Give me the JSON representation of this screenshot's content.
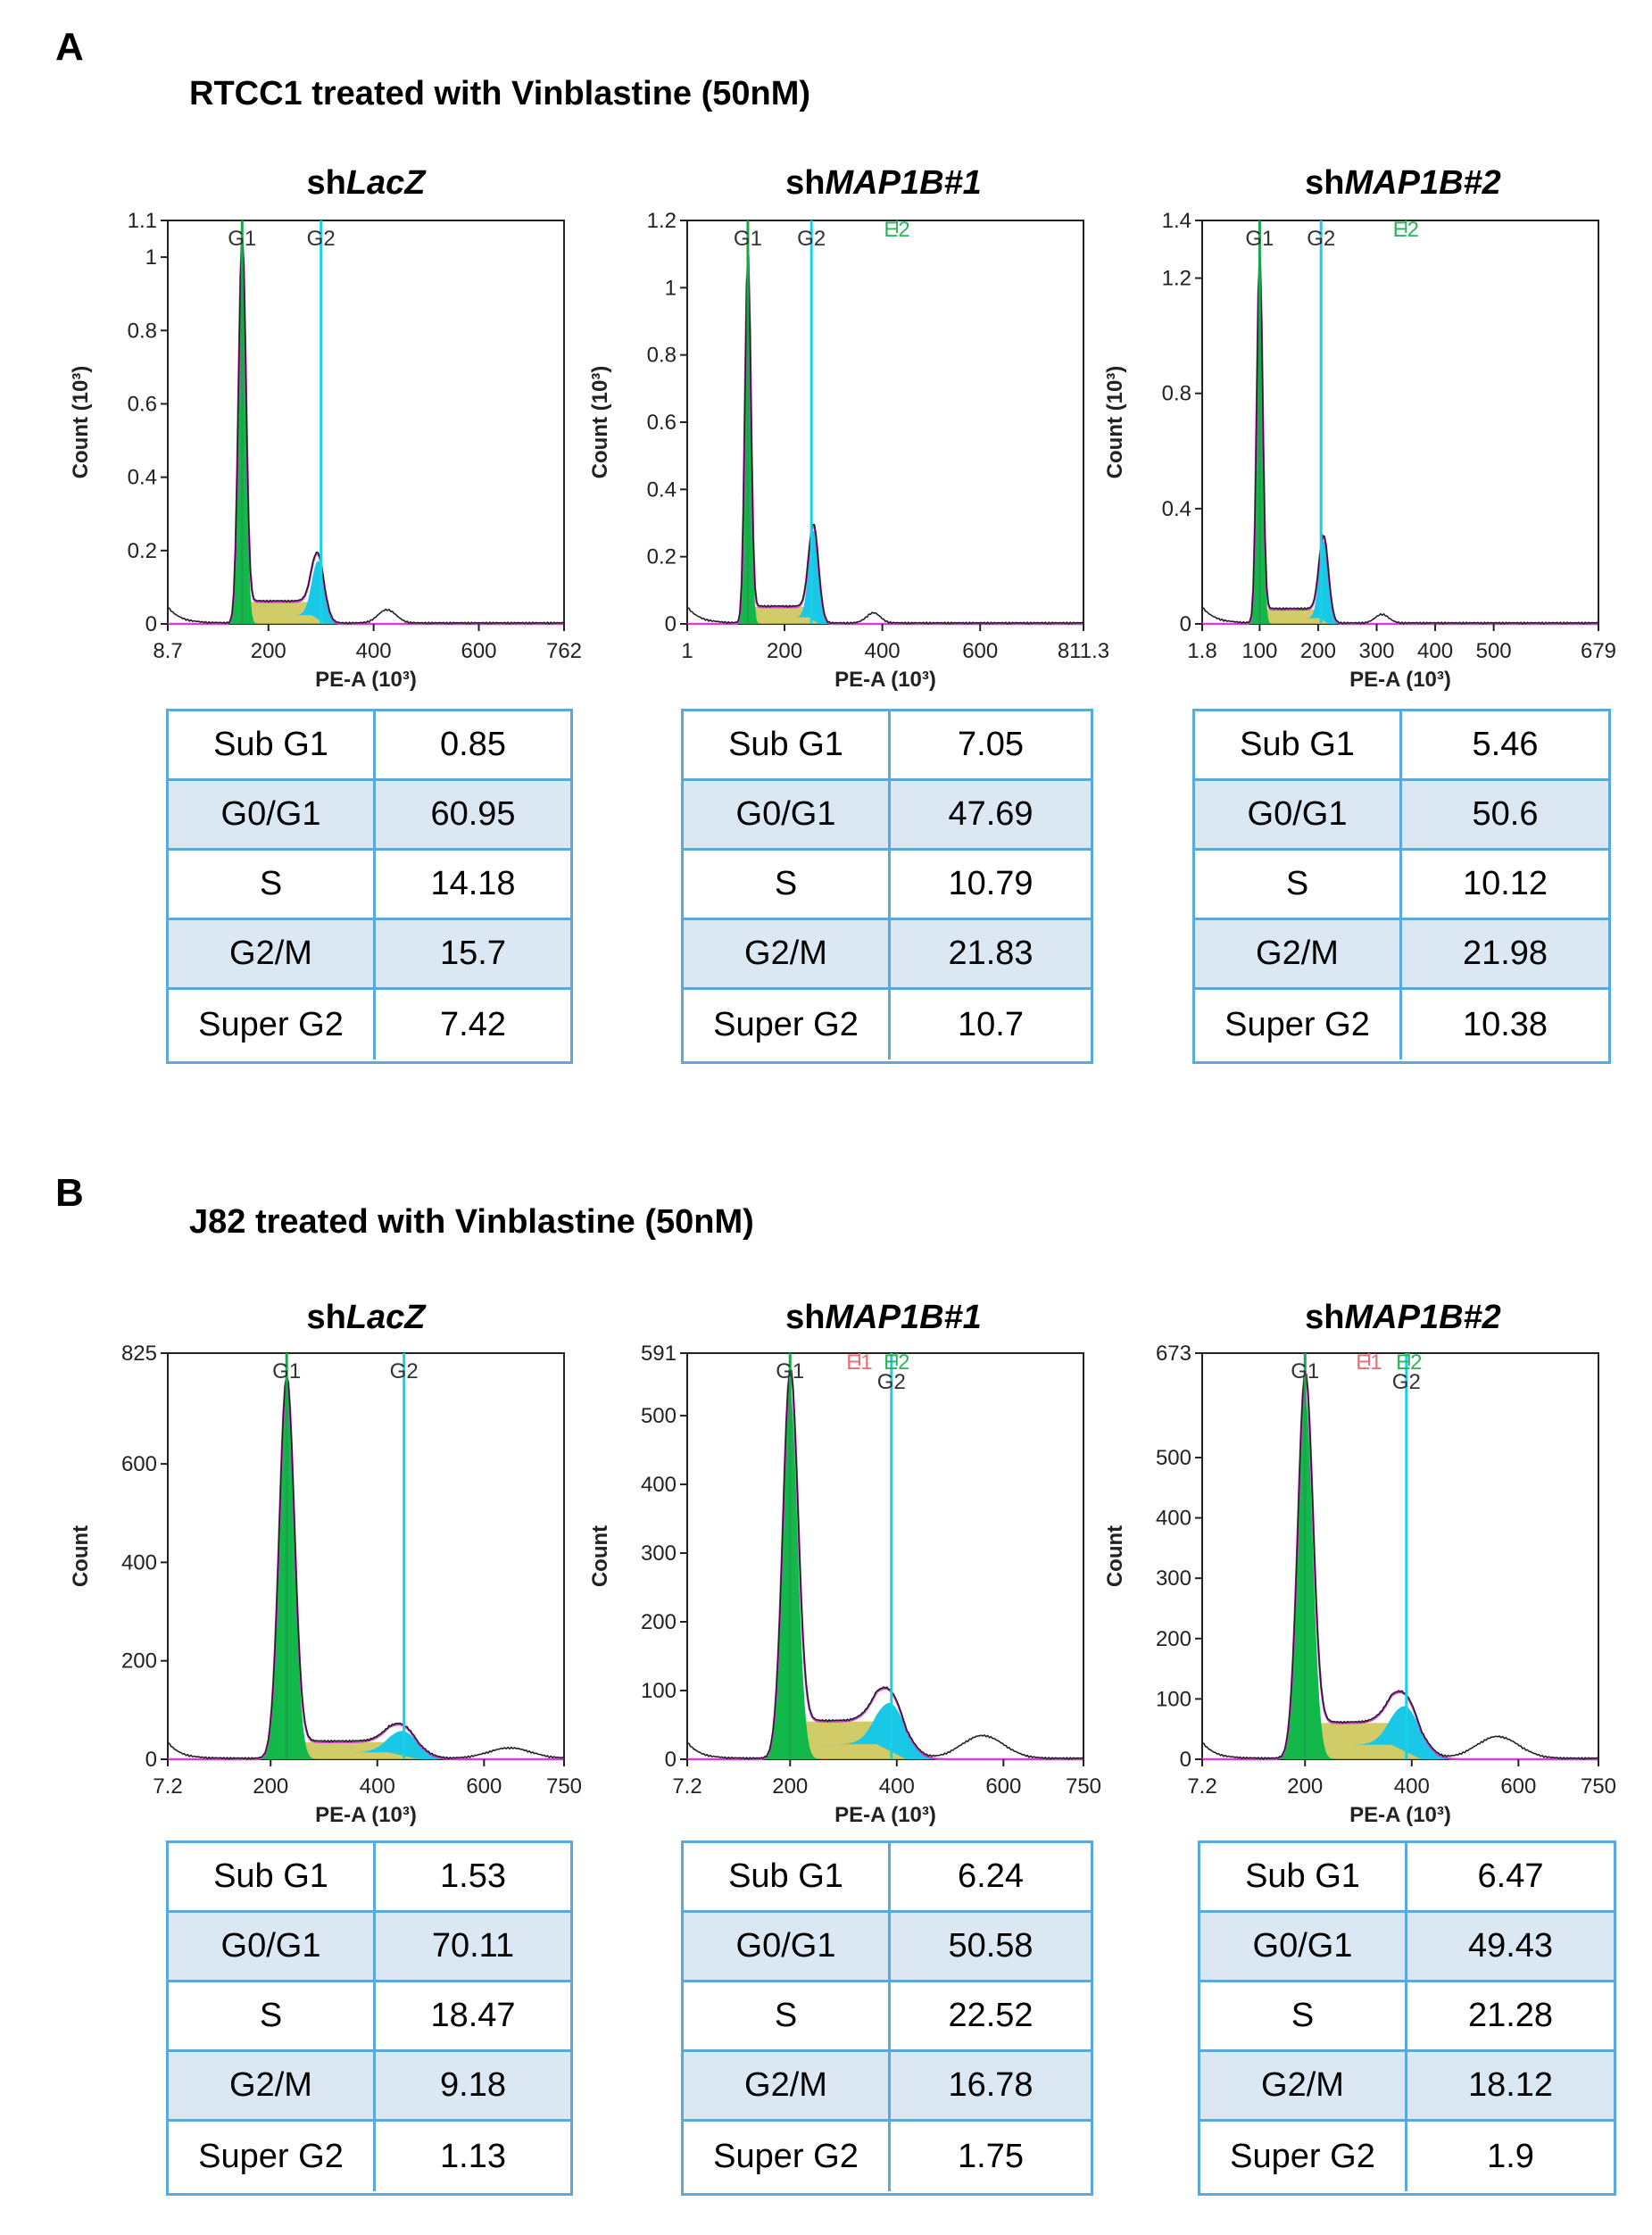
{
  "colors": {
    "g1_fill": "#12b94a",
    "s_fill": "#c9c24e",
    "g2_fill": "#18c8e6",
    "fit_line": "#d63fd6",
    "raw_line": "#222222",
    "g1_marker": "#1aa74a",
    "g2_marker": "#1ad0e6",
    "e1_label": "#ef6b73",
    "e2_label": "#2eb35c",
    "table_border": "#5ba9da",
    "table_shade": "#dbe8f4"
  },
  "panels": [
    {
      "label": "A",
      "title": "RTCC1 treated with Vinblastine (50nM)",
      "charts": [
        {
          "title_prefix": "sh",
          "title_gene": "LacZ",
          "chart_data": {
            "type": "histogram",
            "xlabel": "PE-A (10³)",
            "ylabel": "Count (10³)",
            "xlim": [
              8.7,
              762
            ],
            "ylim": [
              0,
              1.1
            ],
            "xticks": [
              8.7,
              200,
              400,
              600,
              762
            ],
            "xtick_labels": [
              "8.7",
              "200",
              "400",
              "600",
              "762"
            ],
            "yticks": [
              0,
              0.2,
              0.4,
              0.6,
              0.8,
              1,
              1.1
            ],
            "ytick_labels": [
              "0",
              "0.2",
              "0.4",
              "0.6",
              "0.8",
              "1",
              "1.1"
            ],
            "g1_peak": {
              "x": 150,
              "y": 1.03,
              "sd": 7
            },
            "g2_peak": {
              "x": 295,
              "y": 0.16,
              "sd": 12
            },
            "s_level": 0.06,
            "g1_marker": {
              "x": 150,
              "label": "G1"
            },
            "g2_marker": {
              "x": 300,
              "label": "G2"
            }
          },
          "table": [
            {
              "phase": "Sub G1",
              "value": "0.85"
            },
            {
              "phase": "G0/G1",
              "value": "60.95"
            },
            {
              "phase": "S",
              "value": "14.18"
            },
            {
              "phase": "G2/M",
              "value": "15.7"
            },
            {
              "phase": "Super G2",
              "value": "7.42"
            }
          ]
        },
        {
          "title_prefix": "sh",
          "title_gene": "MAP1B#1",
          "chart_data": {
            "type": "histogram",
            "xlabel": "PE-A (10³)",
            "ylabel": "Count (10³)",
            "xlim": [
              1,
              811.3
            ],
            "ylim": [
              0,
              1.2
            ],
            "xticks": [
              1,
              200,
              400,
              600,
              811.3
            ],
            "xtick_labels": [
              "1",
              "200",
              "400",
              "600",
              "811.3"
            ],
            "yticks": [
              0,
              0.2,
              0.4,
              0.6,
              0.8,
              1,
              1.2
            ],
            "ytick_labels": [
              "0",
              "0.2",
              "0.4",
              "0.6",
              "0.8",
              "1",
              "1.2"
            ],
            "g1_peak": {
              "x": 125,
              "y": 1.08,
              "sd": 6
            },
            "g2_peak": {
              "x": 260,
              "y": 0.27,
              "sd": 10
            },
            "s_level": 0.05,
            "g1_marker": {
              "x": 125,
              "label": "G1"
            },
            "g2_marker": {
              "x": 255,
              "label": "G2"
            },
            "extra_markers": [
              {
                "x": 430,
                "label": "E2",
                "role": "e2"
              }
            ]
          },
          "table": [
            {
              "phase": "Sub G1",
              "value": "7.05"
            },
            {
              "phase": "G0/G1",
              "value": "47.69"
            },
            {
              "phase": "S",
              "value": "10.79"
            },
            {
              "phase": "G2/M",
              "value": "21.83"
            },
            {
              "phase": "Super G2",
              "value": "10.7"
            }
          ]
        },
        {
          "title_prefix": "sh",
          "title_gene": "MAP1B#2",
          "chart_data": {
            "type": "histogram",
            "xlabel": "PE-A (10³)",
            "ylabel": "Count (10³)",
            "xlim": [
              1.8,
              679
            ],
            "ylim": [
              0,
              1.4
            ],
            "xticks": [
              1.8,
              100,
              200,
              300,
              400,
              500,
              679
            ],
            "xtick_labels": [
              "1.8",
              "100",
              "200",
              "300",
              "400",
              "500",
              "679"
            ],
            "yticks": [
              0,
              0.4,
              0.8,
              1.2,
              1.4
            ],
            "ytick_labels": [
              "0",
              "0.4",
              "0.8",
              "1.2",
              "1.4"
            ],
            "g1_peak": {
              "x": 100,
              "y": 1.26,
              "sd": 5
            },
            "g2_peak": {
              "x": 210,
              "y": 0.28,
              "sd": 8
            },
            "s_level": 0.05,
            "g1_marker": {
              "x": 100,
              "label": "G1"
            },
            "g2_marker": {
              "x": 205,
              "label": "G2"
            },
            "extra_markers": [
              {
                "x": 350,
                "label": "E2",
                "role": "e2"
              }
            ]
          },
          "table": [
            {
              "phase": "Sub G1",
              "value": "5.46"
            },
            {
              "phase": "G0/G1",
              "value": "50.6"
            },
            {
              "phase": "S",
              "value": "10.12"
            },
            {
              "phase": "G2/M",
              "value": "21.98"
            },
            {
              "phase": "Super G2",
              "value": "10.38"
            }
          ]
        }
      ]
    },
    {
      "label": "B",
      "title": "J82 treated with Vinblastine (50nM)",
      "charts": [
        {
          "title_prefix": "sh",
          "title_gene": "LacZ",
          "chart_data": {
            "type": "histogram",
            "xlabel": "PE-A (10³)",
            "ylabel": "Count",
            "xlim": [
              7.2,
              750
            ],
            "ylim": [
              0,
              825
            ],
            "xticks": [
              7.2,
              200,
              400,
              600,
              750
            ],
            "xtick_labels": [
              "7.2",
              "200",
              "400",
              "600",
              "750"
            ],
            "yticks": [
              0,
              200,
              400,
              600,
              825
            ],
            "ytick_labels": [
              "0",
              "200",
              "400",
              "600",
              "825"
            ],
            "g1_peak": {
              "x": 230,
              "y": 760,
              "sd": 14
            },
            "g2_peak": {
              "x": 450,
              "y": 50,
              "sd": 28
            },
            "s_level": 35,
            "g1_marker": {
              "x": 230,
              "label": "G1"
            },
            "g2_marker": {
              "x": 450,
              "label": "G2"
            }
          },
          "table": [
            {
              "phase": "Sub G1",
              "value": "1.53"
            },
            {
              "phase": "G0/G1",
              "value": "70.11"
            },
            {
              "phase": "S",
              "value": "18.47"
            },
            {
              "phase": "G2/M",
              "value": "9.18"
            },
            {
              "phase": "Super G2",
              "value": "1.13"
            }
          ]
        },
        {
          "title_prefix": "sh",
          "title_gene": "MAP1B#1",
          "chart_data": {
            "type": "histogram",
            "xlabel": "PE-A (10³)",
            "ylabel": "Count",
            "xlim": [
              7.2,
              750
            ],
            "ylim": [
              0,
              591
            ],
            "xticks": [
              7.2,
              200,
              400,
              600,
              750
            ],
            "xtick_labels": [
              "7.2",
              "200",
              "400",
              "600",
              "750"
            ],
            "yticks": [
              0,
              100,
              200,
              300,
              400,
              500,
              591
            ],
            "ytick_labels": [
              "0",
              "100",
              "200",
              "300",
              "400",
              "500",
              "591"
            ],
            "g1_peak": {
              "x": 200,
              "y": 540,
              "sd": 14
            },
            "g2_peak": {
              "x": 390,
              "y": 70,
              "sd": 28
            },
            "s_level": 55,
            "g1_marker": {
              "x": 200,
              "label": "G1"
            },
            "g2_marker": {
              "x": 390,
              "label": "G2"
            },
            "extra_markers": [
              {
                "x": 330,
                "label": "E1",
                "role": "e1"
              },
              {
                "x": 400,
                "label": "E2",
                "role": "e2"
              }
            ]
          },
          "table": [
            {
              "phase": "Sub G1",
              "value": "6.24"
            },
            {
              "phase": "G0/G1",
              "value": "50.58"
            },
            {
              "phase": "S",
              "value": "22.52"
            },
            {
              "phase": "G2/M",
              "value": "16.78"
            },
            {
              "phase": "Super G2",
              "value": "1.75"
            }
          ]
        },
        {
          "title_prefix": "sh",
          "title_gene": "MAP1B#2",
          "chart_data": {
            "type": "histogram",
            "xlabel": "PE-A (10³)",
            "ylabel": "Count",
            "xlim": [
              7.2,
              750
            ],
            "ylim": [
              0,
              673
            ],
            "xticks": [
              7.2,
              200,
              400,
              600,
              750
            ],
            "xtick_labels": [
              "7.2",
              "200",
              "400",
              "600",
              "750"
            ],
            "yticks": [
              0,
              100,
              200,
              300,
              400,
              500,
              673
            ],
            "ytick_labels": [
              "0",
              "100",
              "200",
              "300",
              "400",
              "500",
              "673"
            ],
            "g1_peak": {
              "x": 200,
              "y": 610,
              "sd": 14
            },
            "g2_peak": {
              "x": 390,
              "y": 75,
              "sd": 28
            },
            "s_level": 60,
            "g1_marker": {
              "x": 200,
              "label": "G1"
            },
            "g2_marker": {
              "x": 390,
              "label": "G2"
            },
            "extra_markers": [
              {
                "x": 320,
                "label": "E1",
                "role": "e1"
              },
              {
                "x": 395,
                "label": "E2",
                "role": "e2"
              }
            ]
          },
          "table": [
            {
              "phase": "Sub G1",
              "value": "6.47"
            },
            {
              "phase": "G0/G1",
              "value": "49.43"
            },
            {
              "phase": "S",
              "value": "21.28"
            },
            {
              "phase": "G2/M",
              "value": "18.12"
            },
            {
              "phase": "Super G2",
              "value": "1.9"
            }
          ]
        }
      ]
    }
  ]
}
